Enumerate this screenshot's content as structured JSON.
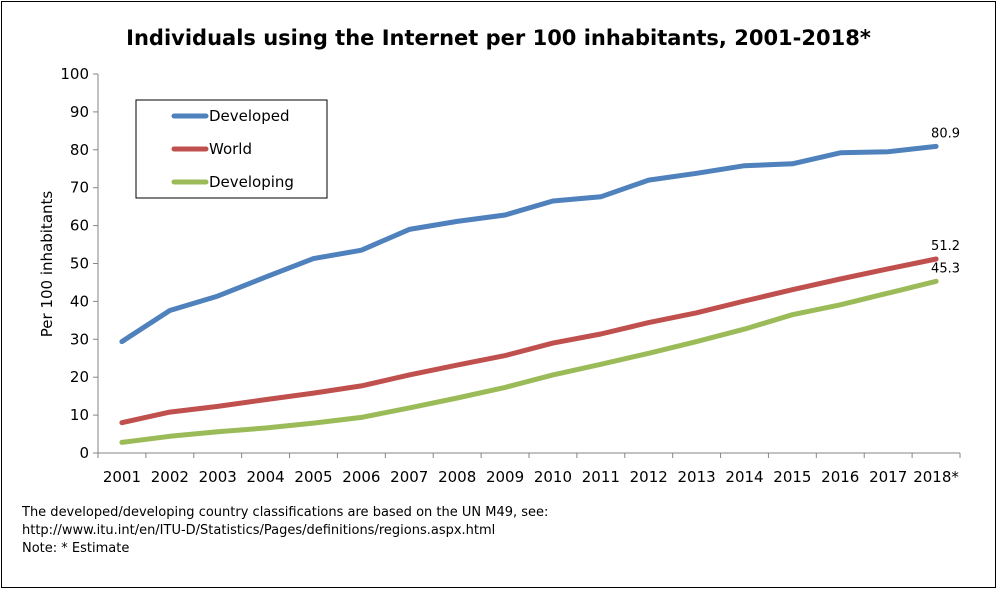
{
  "chart_data": {
    "type": "line",
    "title": "Individuals using the Internet per 100 inhabitants, 2001-2018*",
    "xlabel": "",
    "ylabel": "Per 100 inhabitants",
    "categories": [
      "2001",
      "2002",
      "2003",
      "2004",
      "2005",
      "2006",
      "2007",
      "2008",
      "2009",
      "2010",
      "2011",
      "2012",
      "2013",
      "2014",
      "2015",
      "2016",
      "2017",
      "2018*"
    ],
    "ylim": [
      0,
      100
    ],
    "yticks": [
      0,
      10,
      20,
      30,
      40,
      50,
      60,
      70,
      80,
      90,
      100
    ],
    "grid": false,
    "legend": "top-left",
    "series": [
      {
        "name": "Developed",
        "color": "#4f81bd",
        "values": [
          29.4,
          37.6,
          41.4,
          46.4,
          51.3,
          53.5,
          59.0,
          61.1,
          62.8,
          66.5,
          67.6,
          72.0,
          73.8,
          75.8,
          76.3,
          79.2,
          79.5,
          80.9
        ],
        "end_label": "80.9"
      },
      {
        "name": "World",
        "color": "#c0504d",
        "values": [
          8.0,
          10.8,
          12.3,
          14.1,
          15.8,
          17.7,
          20.6,
          23.2,
          25.7,
          29.0,
          31.4,
          34.4,
          37.0,
          40.1,
          43.1,
          45.9,
          48.6,
          51.2
        ],
        "end_label": "51.2"
      },
      {
        "name": "Developing",
        "color": "#9bbb59",
        "values": [
          2.8,
          4.4,
          5.6,
          6.6,
          7.9,
          9.4,
          11.9,
          14.5,
          17.3,
          20.6,
          23.4,
          26.3,
          29.4,
          32.7,
          36.5,
          39.1,
          42.2,
          45.3
        ],
        "end_label": "45.3"
      }
    ]
  },
  "notes": {
    "line1": "The developed/developing country classifications are based on the UN M49, see:",
    "line2": "http://www.itu.int/en/ITU-D/Statistics/Pages/definitions/regions.aspx.html",
    "line3": "Note: * Estimate"
  }
}
